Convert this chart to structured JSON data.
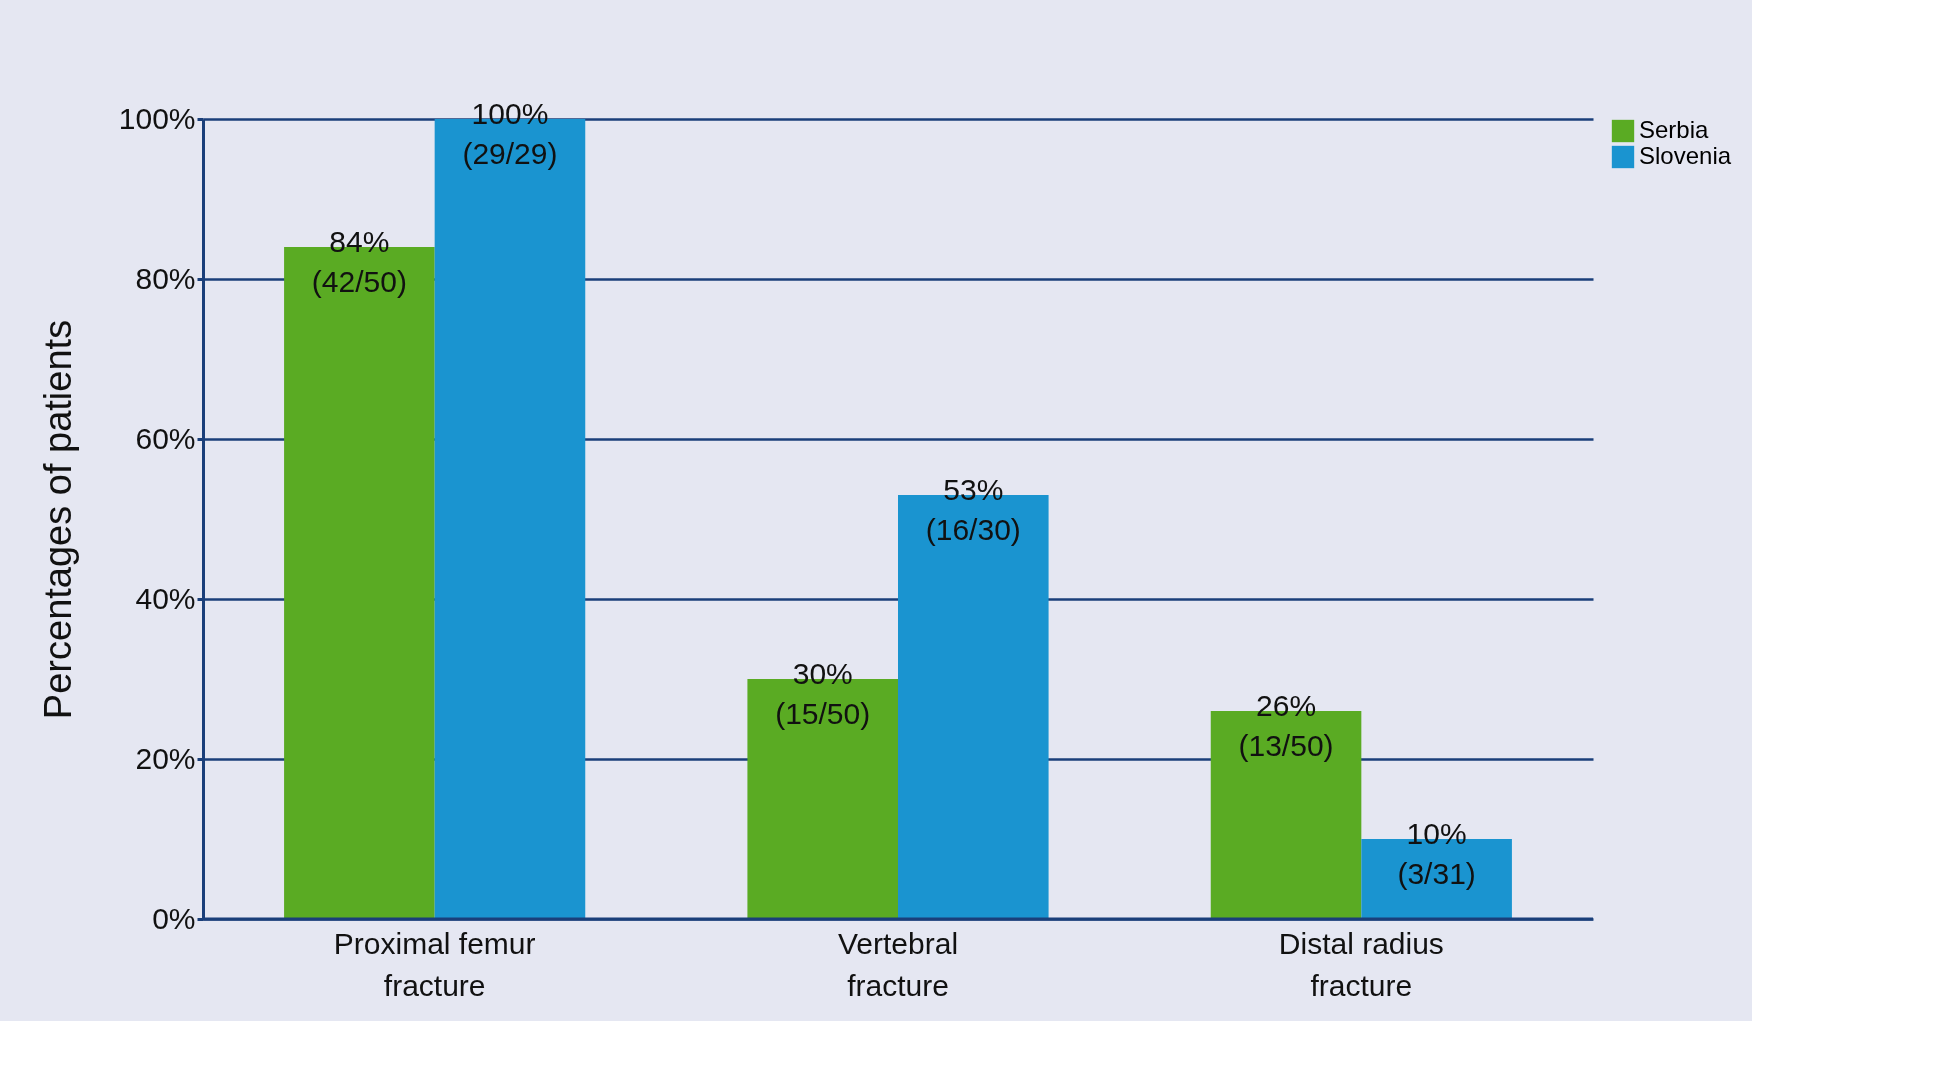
{
  "chart_data": {
    "type": "bar",
    "ylabel": "Percentages of patients",
    "categories": [
      "Proximal femur\nfracture",
      "Vertebral\nfracture",
      "Distal radius\nfracture"
    ],
    "series": [
      {
        "name": "Serbia",
        "color": "#5aab23",
        "values": [
          84,
          30,
          26
        ],
        "value_labels": [
          "84%\n(42/50)",
          "30%\n(15/50)",
          "26%\n(13/50)"
        ]
      },
      {
        "name": "Slovenia",
        "color": "#1a94d0",
        "values": [
          100,
          53,
          10
        ],
        "value_labels": [
          "100%\n(29/29)",
          "53%\n(16/30)",
          "10%\n(3/31)"
        ]
      }
    ],
    "ylim": [
      0,
      100
    ],
    "yticks": [
      {
        "value": 0,
        "label": "0%"
      },
      {
        "value": 20,
        "label": "20%"
      },
      {
        "value": 40,
        "label": "40%"
      },
      {
        "value": 60,
        "label": "60%"
      },
      {
        "value": 80,
        "label": "80%"
      },
      {
        "value": 100,
        "label": "100%"
      }
    ],
    "grid": "y",
    "legend": "top right"
  }
}
